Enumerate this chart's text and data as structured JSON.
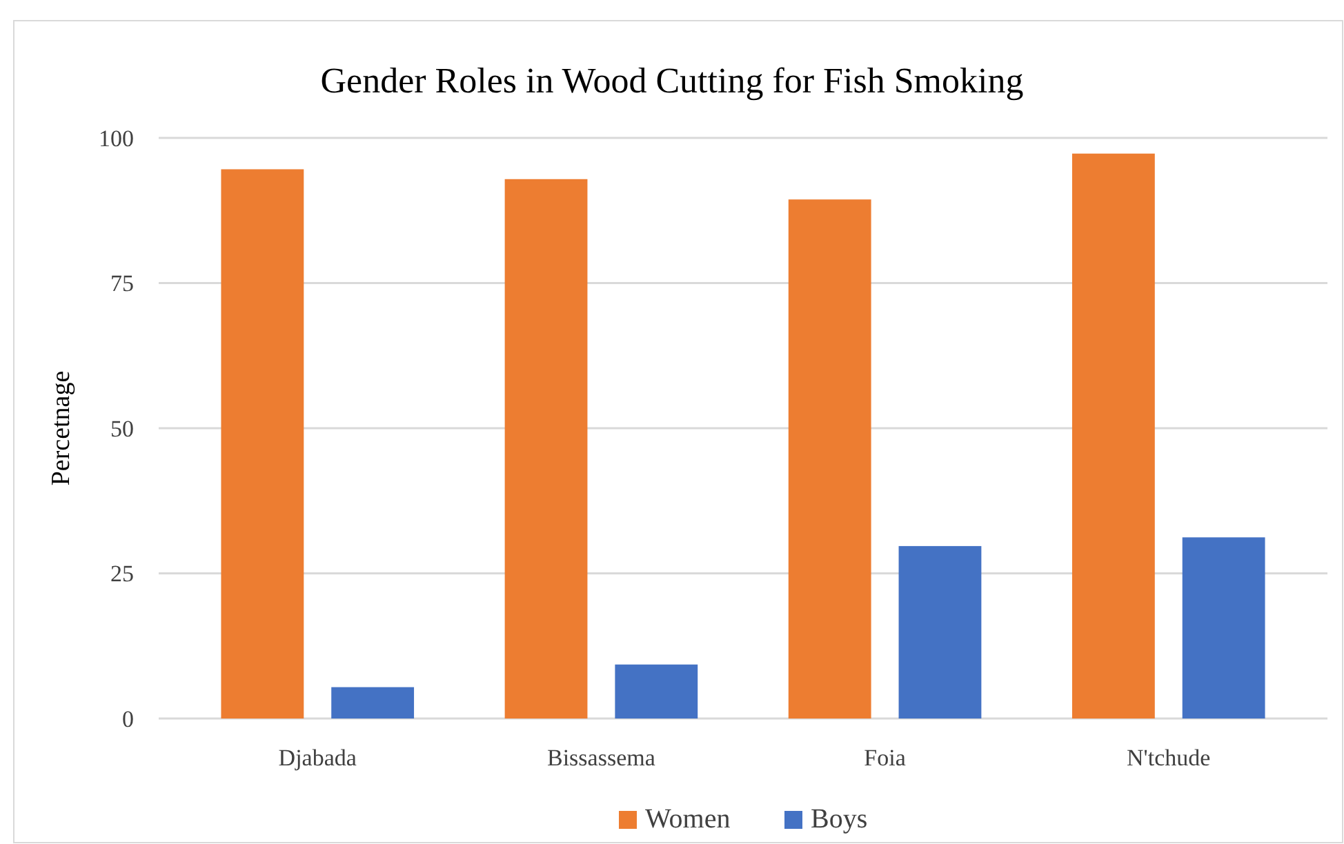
{
  "chart_data": {
    "type": "bar",
    "title": "Gender Roles in Wood Cutting for Fish Smoking",
    "ylabel": "Percetnage",
    "categories": [
      "Djabada",
      "Bissassema",
      "Foia",
      "N'tchude"
    ],
    "series": [
      {
        "name": "Women",
        "color": "#ed7d31",
        "values": [
          94.6,
          92.9,
          89.4,
          97.3
        ]
      },
      {
        "name": "Boys",
        "color": "#4472c4",
        "values": [
          5.4,
          9.3,
          29.7,
          31.2
        ]
      }
    ],
    "ylim": [
      0,
      100
    ],
    "yticks": [
      0,
      25,
      50,
      75,
      100
    ],
    "grid": "y",
    "legend": "bottom"
  }
}
